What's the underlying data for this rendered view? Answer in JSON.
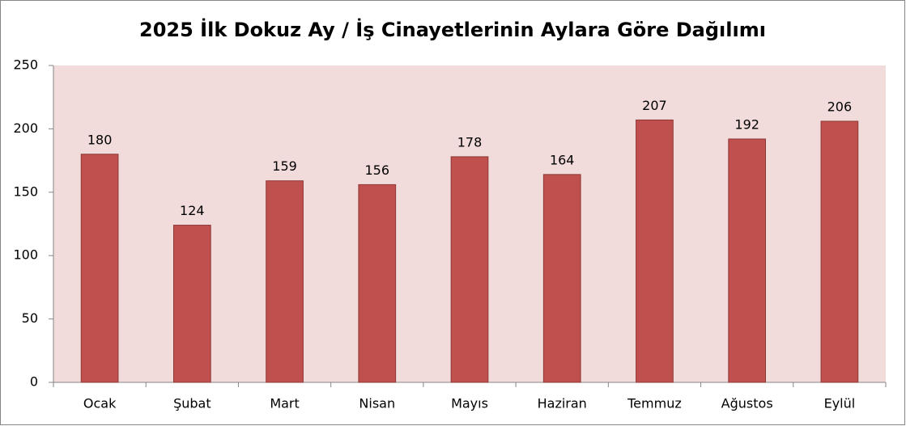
{
  "chart_data": {
    "type": "bar",
    "title": "2025 İlk Dokuz Ay / İş Cinayetlerinin Aylara Göre Dağılımı",
    "categories": [
      "Ocak",
      "Şubat",
      "Mart",
      "Nisan",
      "Mayıs",
      "Haziran",
      "Temmuz",
      "Ağustos",
      "Eylül"
    ],
    "values": [
      180,
      124,
      159,
      156,
      178,
      164,
      207,
      192,
      206
    ],
    "color": "#c0504d",
    "ylim": [
      0,
      250
    ],
    "yticks": [
      0,
      50,
      100,
      150,
      200,
      250
    ],
    "grid": false
  }
}
